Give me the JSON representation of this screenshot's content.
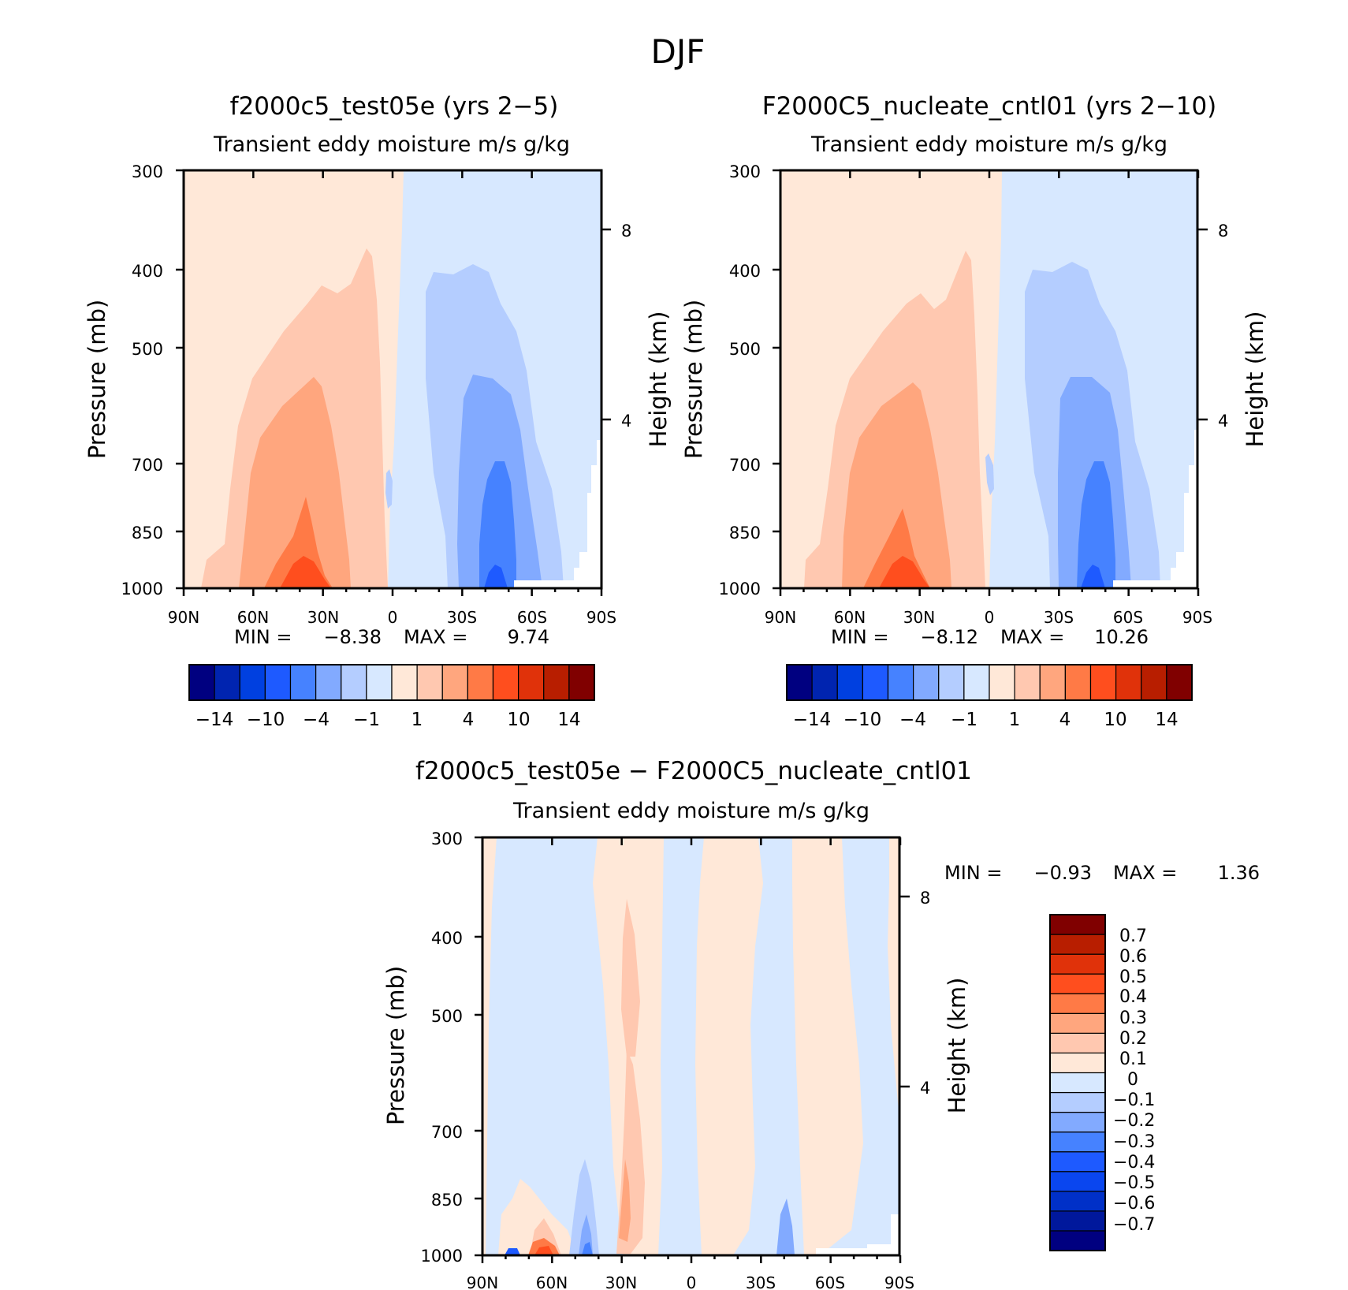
{
  "figure_title": "DJF",
  "colors": {
    "full_scale": [
      "#000080",
      "#0024b0",
      "#0040e0",
      "#1e5aff",
      "#4682ff",
      "#82aaff",
      "#b4cdff",
      "#d7e8ff",
      "#ffe8d8",
      "#ffc8b0",
      "#ffa67e",
      "#ff7a46",
      "#ff4e1e",
      "#e0320a",
      "#b81e00",
      "#800000"
    ],
    "diff_scale": [
      "#000080",
      "#00189c",
      "#0030c8",
      "#0a46ef",
      "#1e5aff",
      "#4682ff",
      "#82aaff",
      "#b4cdff",
      "#d7e8ff",
      "#ffe8d8",
      "#ffc8b0",
      "#ffa67e",
      "#ff7a46",
      "#ff4e1e",
      "#e0320a",
      "#b81e00",
      "#800000"
    ]
  },
  "panels": {
    "p1": {
      "title": "f2000c5_test05e (yrs 2−5)",
      "subtitle": "Transient eddy moisture m/s g/kg",
      "stats": {
        "min_label": "MIN =",
        "min_value": "−8.38",
        "max_label": "MAX =",
        "max_value": "9.74"
      },
      "colorbar_labels": [
        "−14",
        "−10",
        "−4",
        "−1",
        "1",
        "4",
        "10",
        "14"
      ]
    },
    "p2": {
      "title": "F2000C5_nucleate_cntl01 (yrs 2−10)",
      "subtitle": "Transient eddy moisture m/s g/kg",
      "stats": {
        "min_label": "MIN =",
        "min_value": "−8.12",
        "max_label": "MAX =",
        "max_value": "10.26"
      },
      "colorbar_labels": [
        "−14",
        "−10",
        "−4",
        "−1",
        "1",
        "4",
        "10",
        "14"
      ]
    },
    "p3": {
      "title": "f2000c5_test05e − F2000C5_nucleate_cntl01",
      "subtitle": "Transient eddy moisture m/s g/kg",
      "stats": {
        "min_label": "MIN =",
        "min_value": "−0.93",
        "max_label": "MAX =",
        "max_value": "1.36"
      },
      "colorbar_labels": [
        "0.7",
        "0.6",
        "0.5",
        "0.4",
        "0.3",
        "0.2",
        "0.1",
        "0",
        "−0.1",
        "−0.2",
        "−0.3",
        "−0.4",
        "−0.5",
        "−0.6",
        "−0.7"
      ]
    }
  },
  "axes": {
    "ylabel": "Pressure (mb)",
    "ylabel_right": "Height (km)",
    "pressure_ticks": [
      "300",
      "400",
      "500",
      "700",
      "850",
      "1000"
    ],
    "height_ticks": [
      "8",
      "4"
    ],
    "lat_ticks": [
      "90N",
      "60N",
      "30N",
      "0",
      "30S",
      "60S",
      "90S"
    ]
  },
  "chart_data": [
    {
      "type": "heatmap",
      "title": "f2000c5_test05e (yrs 2−5)",
      "subtitle": "Transient eddy moisture m/s g/kg",
      "xlabel": "",
      "x_ticks": [
        "90N",
        "60N",
        "30N",
        "0",
        "30S",
        "60S",
        "90S"
      ],
      "ylabel": "Pressure (mb)",
      "y_ticks": [
        300,
        400,
        500,
        700,
        850,
        1000
      ],
      "ylim": [
        1000,
        300
      ],
      "ylabel_right": "Height (km)",
      "y_right_ticks": [
        8,
        4
      ],
      "min": -8.38,
      "max": 9.74,
      "colorbar_levels": [
        -14,
        -10,
        -4,
        -1,
        1,
        4,
        10,
        14
      ],
      "features": [
        {
          "sign": "positive",
          "lat_center": "35N",
          "max_level": 8,
          "lowest_pressure_mb": 380
        },
        {
          "sign": "negative",
          "lat_center": "45S",
          "min_level": -8,
          "lowest_pressure_mb": 395
        }
      ]
    },
    {
      "type": "heatmap",
      "title": "F2000C5_nucleate_cntl01 (yrs 2−10)",
      "subtitle": "Transient eddy moisture m/s g/kg",
      "xlabel": "",
      "x_ticks": [
        "90N",
        "60N",
        "30N",
        "0",
        "30S",
        "60S",
        "90S"
      ],
      "ylabel": "Pressure (mb)",
      "y_ticks": [
        300,
        400,
        500,
        700,
        850,
        1000
      ],
      "ylim": [
        1000,
        300
      ],
      "ylabel_right": "Height (km)",
      "y_right_ticks": [
        8,
        4
      ],
      "min": -8.12,
      "max": 10.26,
      "colorbar_levels": [
        -14,
        -10,
        -4,
        -1,
        1,
        4,
        10,
        14
      ],
      "features": [
        {
          "sign": "positive",
          "lat_center": "35N",
          "max_level": 8,
          "lowest_pressure_mb": 380
        },
        {
          "sign": "negative",
          "lat_center": "45S",
          "min_level": -8,
          "lowest_pressure_mb": 395
        }
      ]
    },
    {
      "type": "heatmap",
      "title": "f2000c5_test05e − F2000C5_nucleate_cntl01",
      "subtitle": "Transient eddy moisture m/s g/kg",
      "xlabel": "",
      "x_ticks": [
        "90N",
        "60N",
        "30N",
        "0",
        "30S",
        "60S",
        "90S"
      ],
      "ylabel": "Pressure (mb)",
      "y_ticks": [
        300,
        400,
        500,
        700,
        850,
        1000
      ],
      "ylim": [
        1000,
        300
      ],
      "ylabel_right": "Height (km)",
      "y_right_ticks": [
        8,
        4
      ],
      "min": -0.93,
      "max": 1.36,
      "colorbar_levels": [
        -0.7,
        -0.6,
        -0.5,
        -0.4,
        -0.3,
        -0.2,
        -0.1,
        0,
        0.1,
        0.2,
        0.3,
        0.4,
        0.5,
        0.6,
        0.7
      ]
    }
  ]
}
